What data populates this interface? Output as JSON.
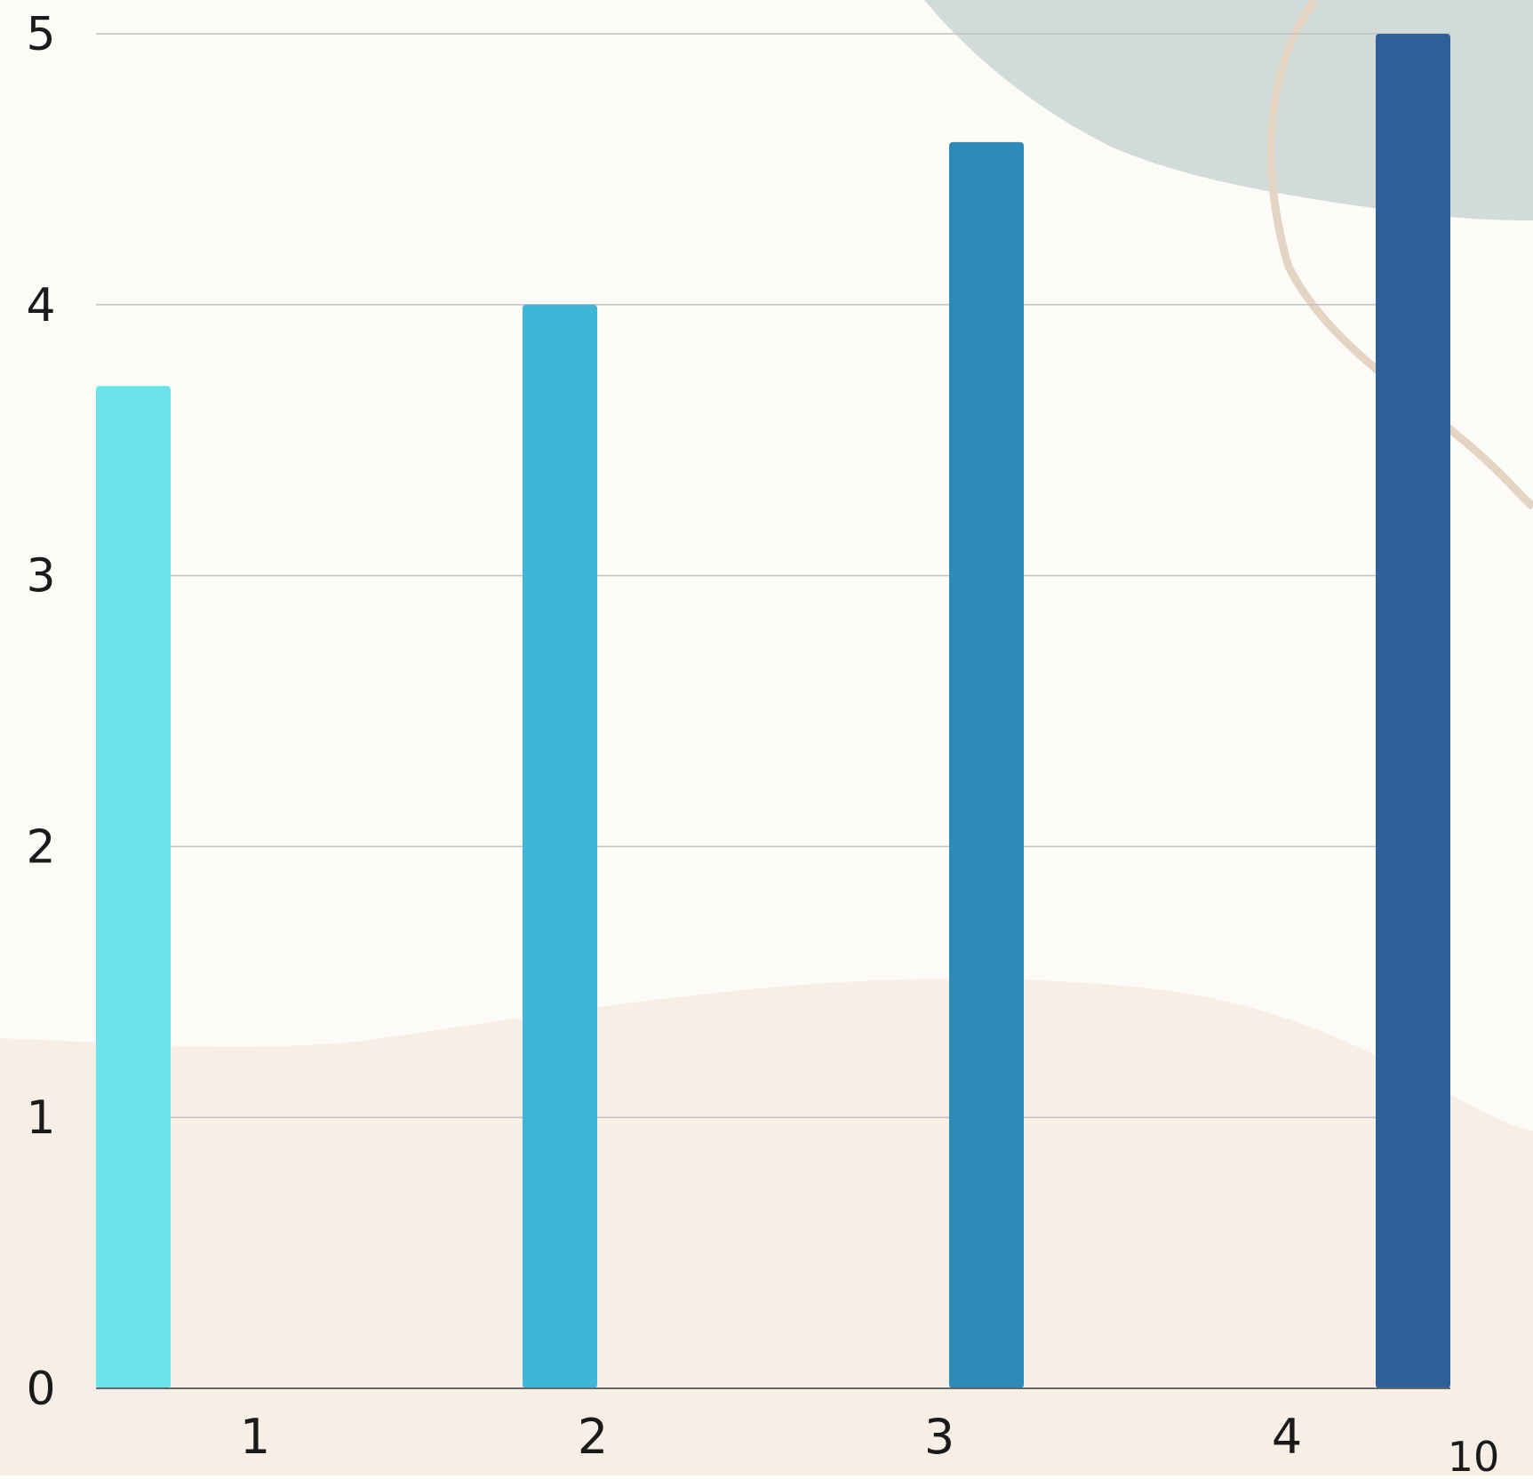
{
  "colors": {
    "background": "#fdfbf7",
    "blob_top_right": "#d1dcda",
    "blob_bottom": "#f7efe6",
    "ring": "#e4d4c4",
    "gridline": "#c2c2c2",
    "axis": "#666666"
  },
  "chart_data": {
    "type": "bar",
    "categories": [
      "1",
      "2",
      "3",
      "4"
    ],
    "values": [
      3.7,
      4.0,
      4.6,
      5.0
    ],
    "bar_colors": [
      "#6ae4e8",
      "#40b6d6",
      "#2c8bb8",
      "#2e5f96"
    ],
    "y_ticks": [
      "0",
      "1",
      "2",
      "3",
      "4",
      "5"
    ],
    "ylim": [
      0,
      5
    ],
    "corner_label": "10",
    "grid": true,
    "legend": "none"
  }
}
